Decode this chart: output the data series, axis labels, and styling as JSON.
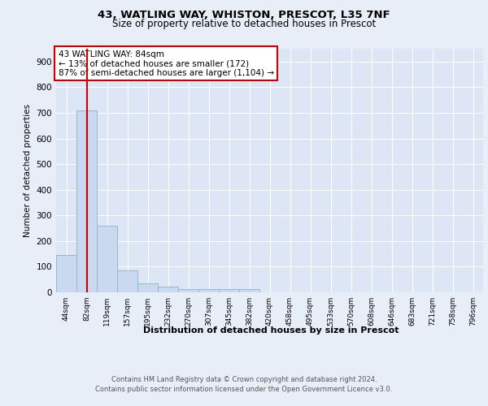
{
  "title1": "43, WATLING WAY, WHISTON, PRESCOT, L35 7NF",
  "title2": "Size of property relative to detached houses in Prescot",
  "xlabel": "Distribution of detached houses by size in Prescot",
  "ylabel": "Number of detached properties",
  "bar_labels": [
    "44sqm",
    "82sqm",
    "119sqm",
    "157sqm",
    "195sqm",
    "232sqm",
    "270sqm",
    "307sqm",
    "345sqm",
    "382sqm",
    "420sqm",
    "458sqm",
    "495sqm",
    "533sqm",
    "570sqm",
    "608sqm",
    "646sqm",
    "683sqm",
    "721sqm",
    "758sqm",
    "796sqm"
  ],
  "bar_values": [
    147,
    710,
    260,
    84,
    35,
    22,
    12,
    12,
    12,
    12,
    0,
    0,
    0,
    0,
    0,
    0,
    0,
    0,
    0,
    0,
    0
  ],
  "bar_color": "#c9d9f0",
  "bar_edge_color": "#9ab4d4",
  "vline_x": 1.0,
  "vline_color": "#cc0000",
  "annotation_text": "43 WATLING WAY: 84sqm\n← 13% of detached houses are smaller (172)\n87% of semi-detached houses are larger (1,104) →",
  "annotation_box_color": "#ffffff",
  "annotation_box_edge": "#cc0000",
  "footer1": "Contains HM Land Registry data © Crown copyright and database right 2024.",
  "footer2": "Contains public sector information licensed under the Open Government Licence v3.0.",
  "ylim": [
    0,
    950
  ],
  "yticks": [
    0,
    100,
    200,
    300,
    400,
    500,
    600,
    700,
    800,
    900
  ],
  "bg_color": "#e8eef8",
  "plot_bg": "#dce6f5",
  "title1_fontsize": 9.5,
  "title2_fontsize": 8.5,
  "ylabel_fontsize": 7.5,
  "xlabel_fontsize": 8.0,
  "tick_fontsize": 7.5,
  "xtick_fontsize": 6.5,
  "ann_fontsize": 7.5,
  "footer_fontsize": 6.0
}
